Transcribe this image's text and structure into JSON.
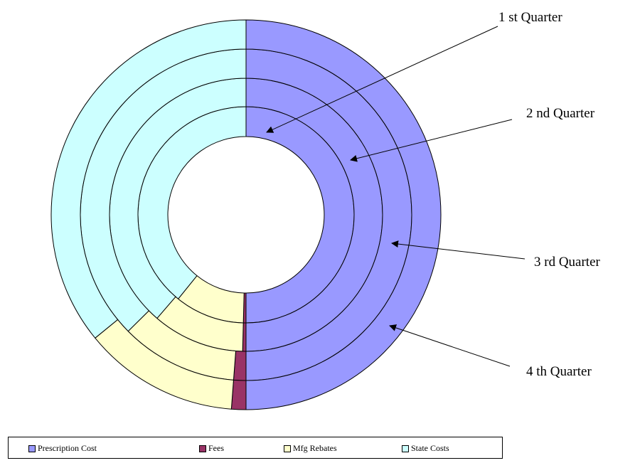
{
  "chart_data": {
    "type": "donut",
    "title": "",
    "series_order": "inner-to-outer",
    "categories": [
      "Prescription Cost",
      "Fees",
      "Mfg Rebates",
      "State Costs"
    ],
    "colors": {
      "Prescription Cost": "#9999ff",
      "Fees": "#993366",
      "Mfg Rebates": "#ffffcc",
      "State Costs": "#ccffff"
    },
    "series": [
      {
        "name": "1 st Quarter",
        "values": [
          50.0,
          0.4,
          10.4,
          39.2
        ]
      },
      {
        "name": "2 nd Quarter",
        "values": [
          50.0,
          0.4,
          10.9,
          38.7
        ]
      },
      {
        "name": "3 rd Quarter",
        "values": [
          50.0,
          1.2,
          11.4,
          37.4
        ]
      },
      {
        "name": "4 th Quarter",
        "values": [
          50.0,
          1.2,
          12.9,
          35.9
        ]
      }
    ],
    "legend": {
      "position": "bottom",
      "items": [
        "Prescription Cost",
        "Fees",
        "Mfg Rebates",
        "State Costs"
      ]
    }
  }
}
